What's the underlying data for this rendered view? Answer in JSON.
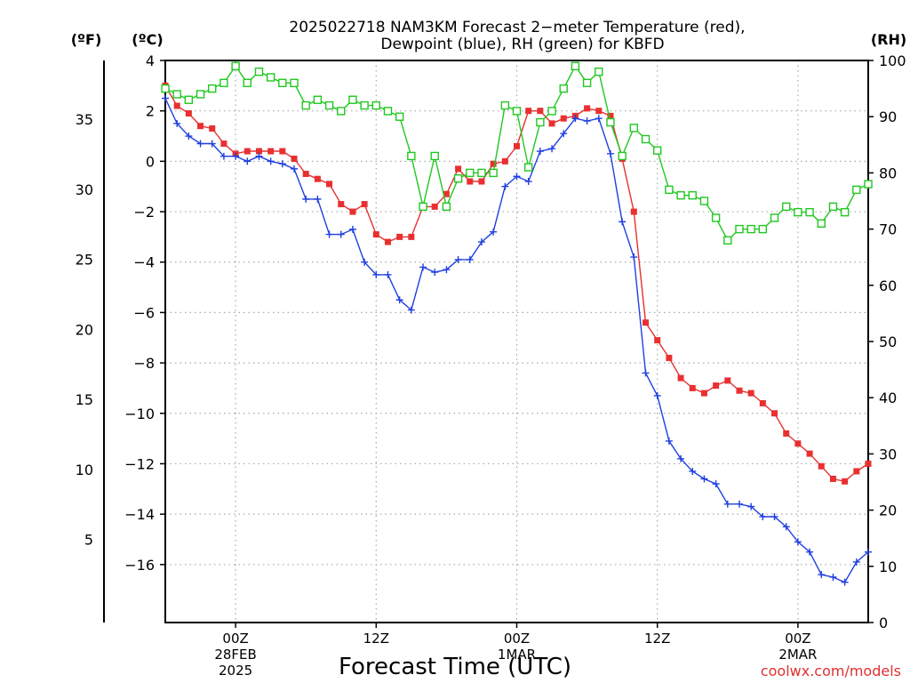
{
  "chart_data": {
    "type": "line",
    "title": "2025022718 NAM3KM Forecast 2−meter Temperature (red),",
    "subtitle": "Dewpoint (blue), RH (green) for KBFD",
    "xlabel": "Forecast Time (UTC)",
    "credit": "coolwx.com/models",
    "units": {
      "fahrenheit": "(ºF)",
      "celsius": "(ºC)",
      "rh": "(RH)"
    },
    "x_ticks": [
      {
        "hour": 6,
        "lines": [
          "00Z",
          "28FEB",
          "2025"
        ]
      },
      {
        "hour": 18,
        "lines": [
          "12Z"
        ]
      },
      {
        "hour": 30,
        "lines": [
          "00Z",
          "1MAR"
        ]
      },
      {
        "hour": 42,
        "lines": [
          "12Z"
        ]
      },
      {
        "hour": 54,
        "lines": [
          "00Z",
          "2MAR"
        ]
      }
    ],
    "xlim": [
      0,
      60
    ],
    "celsius_ticks": [
      "4",
      "2",
      "0",
      "−2",
      "−4",
      "−6",
      "−8",
      "−10",
      "−12",
      "−14",
      "−16"
    ],
    "fahrenheit_ticks": [
      "35",
      "30",
      "25",
      "20",
      "15",
      "10",
      "5"
    ],
    "rh_ticks": [
      "100",
      "90",
      "80",
      "70",
      "60",
      "50",
      "40",
      "30",
      "20",
      "10",
      "0"
    ],
    "ylim_celsius": [
      -18.3,
      4.0
    ],
    "ylim_rh": [
      0,
      100
    ],
    "grid": true,
    "colors": {
      "temperature": "#e83030",
      "dewpoint": "#2040e0",
      "rh": "#20c820"
    },
    "series": [
      {
        "name": "Temperature",
        "axis": "celsius",
        "x": [
          0,
          1,
          2,
          3,
          4,
          5,
          6,
          7,
          8,
          9,
          10,
          11,
          12,
          13,
          14,
          15,
          16,
          17,
          18,
          19,
          20,
          21,
          22,
          23,
          24,
          25,
          26,
          27,
          28,
          29,
          30,
          31,
          32,
          33,
          34,
          35,
          36,
          37,
          38,
          39,
          40,
          41,
          42,
          43,
          44,
          45,
          46,
          47,
          48,
          49,
          50,
          51,
          52,
          53,
          54,
          55,
          56,
          57,
          58,
          59,
          60
        ],
        "values": [
          3.0,
          2.2,
          1.9,
          1.4,
          1.3,
          0.7,
          0.3,
          0.4,
          0.4,
          0.4,
          0.4,
          0.1,
          -0.5,
          -0.7,
          -0.9,
          -1.7,
          -2.0,
          -1.7,
          -2.9,
          -3.2,
          -3.0,
          -3.0,
          -1.8,
          -1.8,
          -1.3,
          -0.3,
          -0.8,
          -0.8,
          -0.1,
          0.0,
          0.6,
          2.0,
          2.0,
          1.5,
          1.7,
          1.8,
          2.1,
          2.0,
          1.8,
          0.1,
          -2.0,
          -6.4,
          -7.1,
          -7.8,
          -8.6,
          -9.0,
          -9.2,
          -8.9,
          -8.7,
          -9.1,
          -9.2,
          -9.6,
          -10.0,
          -10.8,
          -11.2,
          -11.6,
          -12.1,
          -12.6,
          -12.7,
          -12.3,
          -12.0
        ]
      },
      {
        "name": "Dewpoint",
        "axis": "celsius",
        "x": [
          0,
          1,
          2,
          3,
          4,
          5,
          6,
          7,
          8,
          9,
          10,
          11,
          12,
          13,
          14,
          15,
          16,
          17,
          18,
          19,
          20,
          21,
          22,
          23,
          24,
          25,
          26,
          27,
          28,
          29,
          30,
          31,
          32,
          33,
          34,
          35,
          36,
          37,
          38,
          39,
          40,
          41,
          42,
          43,
          44,
          45,
          46,
          47,
          48,
          49,
          50,
          51,
          52,
          53,
          54,
          55,
          56,
          57,
          58,
          59,
          60
        ],
        "values": [
          2.5,
          1.5,
          1.0,
          0.7,
          0.7,
          0.2,
          0.2,
          0.0,
          0.2,
          0.0,
          -0.1,
          -0.3,
          -1.5,
          -1.5,
          -2.9,
          -2.9,
          -2.7,
          -4.0,
          -4.5,
          -4.5,
          -5.5,
          -5.9,
          -4.2,
          -4.4,
          -4.3,
          -3.9,
          -3.9,
          -3.2,
          -2.8,
          -1.0,
          -0.6,
          -0.8,
          0.4,
          0.5,
          1.1,
          1.7,
          1.6,
          1.7,
          0.3,
          -2.4,
          -3.8,
          -8.4,
          -9.3,
          -11.1,
          -11.8,
          -12.3,
          -12.6,
          -12.8,
          -13.6,
          -13.6,
          -13.7,
          -14.1,
          -14.1,
          -14.5,
          -15.1,
          -15.5,
          -16.4,
          -16.5,
          -16.7,
          -15.9,
          -15.5
        ]
      },
      {
        "name": "RH",
        "axis": "rh",
        "x": [
          0,
          1,
          2,
          3,
          4,
          5,
          6,
          7,
          8,
          9,
          10,
          11,
          12,
          13,
          14,
          15,
          16,
          17,
          18,
          19,
          20,
          21,
          22,
          23,
          24,
          25,
          26,
          27,
          28,
          29,
          30,
          31,
          32,
          33,
          34,
          35,
          36,
          37,
          38,
          39,
          40,
          41,
          42,
          43,
          44,
          45,
          46,
          47,
          48,
          49,
          50,
          51,
          52,
          53,
          54,
          55,
          56,
          57,
          58,
          59,
          60
        ],
        "values": [
          95,
          94,
          93,
          94,
          95,
          96,
          99,
          96,
          98,
          97,
          96,
          96,
          92,
          93,
          92,
          91,
          93,
          92,
          92,
          91,
          90,
          83,
          74,
          83,
          74,
          79,
          80,
          80,
          80,
          92,
          91,
          81,
          89,
          91,
          95,
          99,
          96,
          98,
          89,
          83,
          88,
          86,
          84,
          77,
          76,
          76,
          75,
          72,
          68,
          70,
          70,
          70,
          72,
          74,
          73,
          73,
          71,
          74,
          73,
          77,
          78
        ]
      }
    ]
  }
}
